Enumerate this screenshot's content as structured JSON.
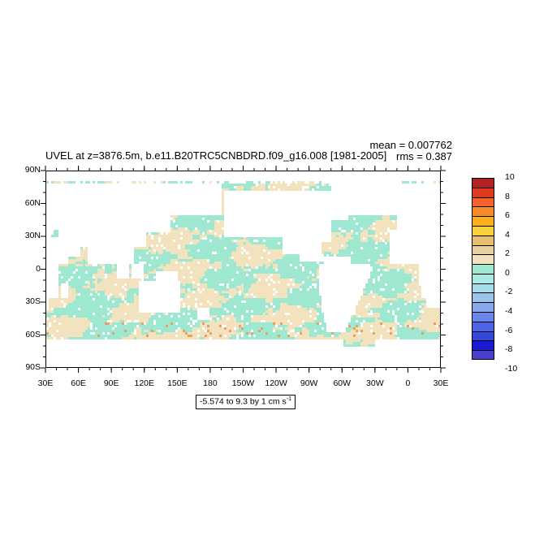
{
  "title": "UVEL at z=3876.5m, b.e11.B20TRC5CNBDRD.f09_g16.008 [1981-2005]",
  "stats": {
    "mean": "mean = 0.007762",
    "rms": "rms = 0.387"
  },
  "lat_labels": [
    "90N",
    "60N",
    "30N",
    "0",
    "30S",
    "60S",
    "90S"
  ],
  "lon_labels": [
    "30E",
    "60E",
    "90E",
    "120E",
    "150E",
    "180",
    "150W",
    "120W",
    "90W",
    "60W",
    "30W",
    "0",
    "30E"
  ],
  "range": {
    "text": "-5.574 to 9.3 by 1 cm s",
    "exp": "-1"
  },
  "colorbar": {
    "labels": [
      "10",
      "8",
      "6",
      "4",
      "2",
      "0",
      "-2",
      "-4",
      "-6",
      "-8",
      "-10"
    ],
    "colors": [
      "#b22222",
      "#e03a1e",
      "#f2622a",
      "#f58a2a",
      "#fab01e",
      "#f8d23a",
      "#e6c070",
      "#e8cfa0",
      "#f2e2bd",
      "#9ee8d2",
      "#a8eae4",
      "#a6dbe8",
      "#98c4ea",
      "#86a8ec",
      "#6a86e8",
      "#4e64e6",
      "#3446dc",
      "#1a1ad2",
      "#4a40cc"
    ]
  },
  "map": {
    "palette": {
      "positive": "#f2e2bd",
      "negative": "#9ee8d2",
      "strong": "#eaa060",
      "land": "#ffffff"
    }
  }
}
